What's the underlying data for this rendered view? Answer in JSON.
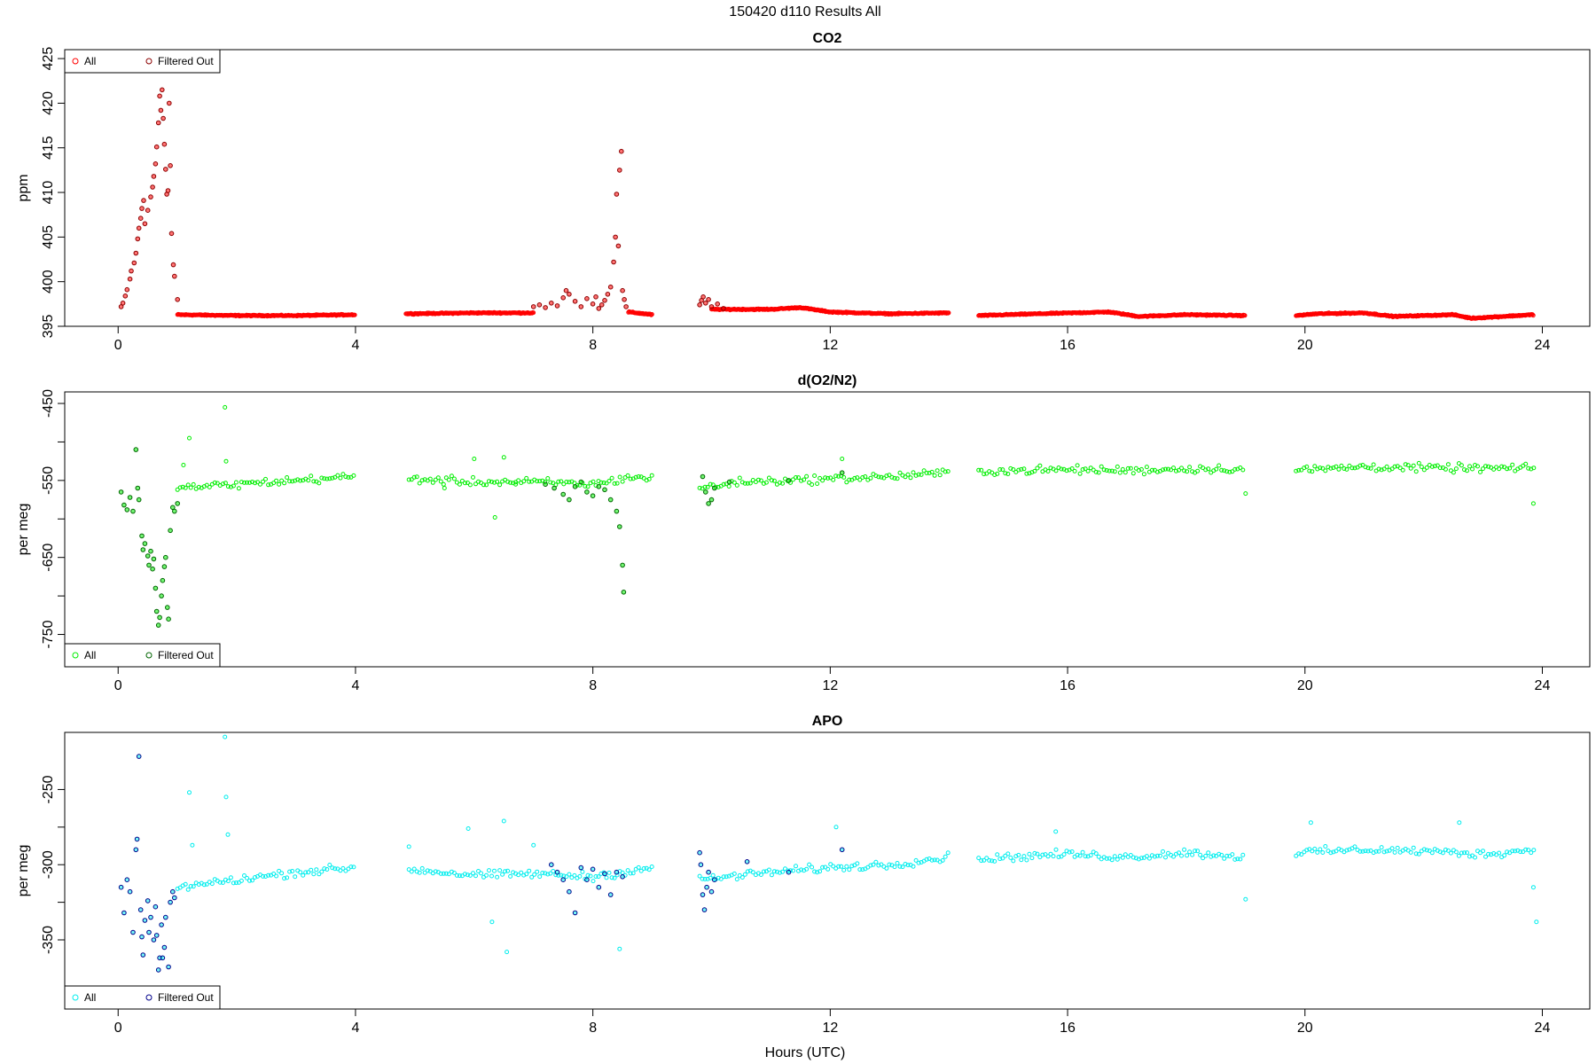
{
  "figure_title": "150420   d110   Results All",
  "xlabel": "Hours (UTC)",
  "chart_data": [
    {
      "type": "scatter",
      "title": "CO2",
      "ylabel": "ppm",
      "xlim": [
        -0.9,
        24.8
      ],
      "ylim": [
        395,
        426
      ],
      "xticks": [
        0,
        4,
        8,
        12,
        16,
        20,
        24
      ],
      "yticks": [
        395,
        400,
        405,
        410,
        415,
        420,
        425
      ],
      "legend": {
        "position": "top-left",
        "entries": [
          "All",
          "Filtered Out"
        ]
      },
      "colors": {
        "all": "#ff0000",
        "filtered": "#8b0000"
      },
      "baseline_segments": [
        {
          "start": 1.0,
          "end": 4.0,
          "points": [
            [
              1.0,
              396.3
            ],
            [
              2.0,
              396.2
            ],
            [
              3.0,
              396.2
            ],
            [
              4.0,
              396.3
            ]
          ]
        },
        {
          "start": 4.85,
          "end": 7.0,
          "points": [
            [
              4.85,
              396.4
            ],
            [
              6.0,
              396.5
            ],
            [
              7.0,
              396.5
            ]
          ]
        },
        {
          "start": 8.6,
          "end": 9.0,
          "points": [
            [
              8.6,
              396.6
            ],
            [
              9.0,
              396.3
            ]
          ]
        },
        {
          "start": 10.0,
          "end": 14.0,
          "points": [
            [
              10.0,
              396.9
            ],
            [
              11.0,
              396.9
            ],
            [
              11.5,
              397.1
            ],
            [
              12.0,
              396.6
            ],
            [
              13.0,
              396.4
            ],
            [
              14.0,
              396.5
            ]
          ]
        },
        {
          "start": 14.5,
          "end": 19.0,
          "points": [
            [
              14.5,
              396.2
            ],
            [
              15.5,
              396.4
            ],
            [
              16.7,
              396.6
            ],
            [
              17.2,
              396.1
            ],
            [
              18.0,
              396.3
            ],
            [
              19.0,
              396.2
            ]
          ]
        },
        {
          "start": 19.85,
          "end": 23.85,
          "points": [
            [
              19.85,
              396.2
            ],
            [
              20.2,
              396.4
            ],
            [
              21.0,
              396.5
            ],
            [
              21.5,
              396.1
            ],
            [
              22.5,
              396.3
            ],
            [
              22.8,
              395.9
            ],
            [
              23.85,
              396.3
            ]
          ]
        }
      ],
      "filtered_points": [
        [
          0.05,
          397.2
        ],
        [
          0.08,
          397.6
        ],
        [
          0.12,
          398.4
        ],
        [
          0.15,
          399.1
        ],
        [
          0.2,
          400.3
        ],
        [
          0.22,
          401.2
        ],
        [
          0.27,
          402.1
        ],
        [
          0.3,
          403.2
        ],
        [
          0.33,
          404.8
        ],
        [
          0.35,
          406.0
        ],
        [
          0.38,
          407.1
        ],
        [
          0.4,
          408.2
        ],
        [
          0.43,
          409.1
        ],
        [
          0.45,
          406.5
        ],
        [
          0.5,
          408.0
        ],
        [
          0.55,
          409.5
        ],
        [
          0.58,
          410.6
        ],
        [
          0.6,
          411.8
        ],
        [
          0.63,
          413.2
        ],
        [
          0.65,
          415.1
        ],
        [
          0.68,
          417.8
        ],
        [
          0.7,
          420.8
        ],
        [
          0.72,
          419.2
        ],
        [
          0.74,
          421.5
        ],
        [
          0.76,
          418.3
        ],
        [
          0.78,
          415.4
        ],
        [
          0.8,
          412.6
        ],
        [
          0.82,
          409.8
        ],
        [
          0.84,
          410.2
        ],
        [
          0.86,
          420.0
        ],
        [
          0.88,
          413.0
        ],
        [
          0.9,
          405.4
        ],
        [
          0.93,
          401.9
        ],
        [
          0.95,
          400.6
        ],
        [
          1.0,
          398.0
        ],
        [
          7.0,
          397.2
        ],
        [
          7.1,
          397.4
        ],
        [
          7.2,
          397.1
        ],
        [
          7.3,
          397.6
        ],
        [
          7.4,
          397.3
        ],
        [
          7.5,
          398.2
        ],
        [
          7.55,
          399.0
        ],
        [
          7.6,
          398.6
        ],
        [
          7.7,
          397.8
        ],
        [
          7.8,
          397.2
        ],
        [
          7.9,
          398.1
        ],
        [
          8.0,
          397.5
        ],
        [
          8.05,
          398.3
        ],
        [
          8.1,
          397.0
        ],
        [
          8.15,
          397.4
        ],
        [
          8.2,
          397.9
        ],
        [
          8.25,
          398.6
        ],
        [
          8.3,
          399.4
        ],
        [
          8.35,
          402.2
        ],
        [
          8.38,
          405.0
        ],
        [
          8.4,
          409.8
        ],
        [
          8.43,
          404.0
        ],
        [
          8.45,
          412.5
        ],
        [
          8.48,
          414.6
        ],
        [
          8.5,
          399.0
        ],
        [
          8.53,
          398.0
        ],
        [
          8.56,
          397.2
        ],
        [
          9.8,
          397.4
        ],
        [
          9.83,
          397.9
        ],
        [
          9.86,
          398.3
        ],
        [
          9.9,
          397.6
        ],
        [
          9.95,
          398.0
        ],
        [
          10.0,
          397.2
        ],
        [
          10.1,
          397.5
        ],
        [
          10.2,
          397.0
        ]
      ]
    },
    {
      "type": "scatter",
      "title": "d(O2/N2)",
      "ylabel": "per meg",
      "xlim": [
        -0.9,
        24.8
      ],
      "ylim": [
        -792,
        -435
      ],
      "xticks": [
        0,
        4,
        8,
        12,
        16,
        20,
        24
      ],
      "yticks": [
        -450,
        -550,
        -650,
        -750
      ],
      "minor_yticks": [
        -500,
        -600,
        -700
      ],
      "legend": {
        "position": "bottom-left",
        "entries": [
          "All",
          "Filtered Out"
        ]
      },
      "colors": {
        "all": "#00ee00",
        "filtered": "#006400"
      },
      "baseline_segments": [
        {
          "start": 1.0,
          "end": 4.0,
          "points": [
            [
              1.0,
              -560
            ],
            [
              2.0,
              -555
            ],
            [
              3.0,
              -550
            ],
            [
              4.0,
              -545
            ]
          ]
        },
        {
          "start": 4.9,
          "end": 9.0,
          "points": [
            [
              4.9,
              -548
            ],
            [
              6.0,
              -552
            ],
            [
              7.0,
              -552
            ],
            [
              8.0,
              -555
            ],
            [
              8.7,
              -545
            ],
            [
              9.0,
              -548
            ]
          ]
        },
        {
          "start": 9.8,
          "end": 14.0,
          "points": [
            [
              9.8,
              -560
            ],
            [
              10.5,
              -552
            ],
            [
              12.0,
              -548
            ],
            [
              13.0,
              -545
            ],
            [
              14.0,
              -540
            ]
          ]
        },
        {
          "start": 14.5,
          "end": 19.0,
          "points": [
            [
              14.5,
              -538
            ],
            [
              16.0,
              -536
            ],
            [
              17.0,
              -537
            ],
            [
              18.0,
              -535
            ],
            [
              19.0,
              -535
            ]
          ]
        },
        {
          "start": 19.85,
          "end": 23.9,
          "points": [
            [
              19.85,
              -537
            ],
            [
              21.0,
              -532
            ],
            [
              22.0,
              -534
            ],
            [
              23.0,
              -534
            ],
            [
              23.9,
              -535
            ]
          ]
        }
      ],
      "outliers": [
        [
          1.2,
          -495
        ],
        [
          1.8,
          -455
        ],
        [
          1.82,
          -525
        ],
        [
          1.1,
          -530
        ],
        [
          6.5,
          -520
        ],
        [
          6.0,
          -522
        ],
        [
          6.7,
          -555
        ],
        [
          6.35,
          -598
        ],
        [
          5.5,
          -560
        ],
        [
          23.85,
          -580
        ],
        [
          19.0,
          -567
        ],
        [
          12.2,
          -522
        ]
      ],
      "filtered_points": [
        [
          0.05,
          -565
        ],
        [
          0.1,
          -582
        ],
        [
          0.15,
          -588
        ],
        [
          0.2,
          -572
        ],
        [
          0.25,
          -590
        ],
        [
          0.3,
          -510
        ],
        [
          0.33,
          -560
        ],
        [
          0.35,
          -575
        ],
        [
          0.4,
          -622
        ],
        [
          0.42,
          -640
        ],
        [
          0.45,
          -632
        ],
        [
          0.5,
          -648
        ],
        [
          0.52,
          -660
        ],
        [
          0.55,
          -642
        ],
        [
          0.58,
          -665
        ],
        [
          0.6,
          -652
        ],
        [
          0.63,
          -690
        ],
        [
          0.65,
          -720
        ],
        [
          0.68,
          -738
        ],
        [
          0.7,
          -728
        ],
        [
          0.73,
          -700
        ],
        [
          0.75,
          -680
        ],
        [
          0.78,
          -662
        ],
        [
          0.8,
          -650
        ],
        [
          0.83,
          -715
        ],
        [
          0.85,
          -730
        ],
        [
          0.88,
          -615
        ],
        [
          0.92,
          -585
        ],
        [
          0.95,
          -590
        ],
        [
          1.0,
          -580
        ],
        [
          7.2,
          -555
        ],
        [
          7.35,
          -560
        ],
        [
          7.5,
          -568
        ],
        [
          7.6,
          -575
        ],
        [
          7.7,
          -558
        ],
        [
          7.8,
          -552
        ],
        [
          7.9,
          -565
        ],
        [
          8.0,
          -570
        ],
        [
          8.1,
          -558
        ],
        [
          8.2,
          -562
        ],
        [
          8.3,
          -575
        ],
        [
          8.4,
          -590
        ],
        [
          8.45,
          -610
        ],
        [
          8.5,
          -660
        ],
        [
          8.52,
          -695
        ],
        [
          9.85,
          -545
        ],
        [
          9.9,
          -565
        ],
        [
          9.95,
          -580
        ],
        [
          10.0,
          -575
        ],
        [
          10.05,
          -560
        ],
        [
          10.3,
          -552
        ],
        [
          11.3,
          -550
        ],
        [
          12.2,
          -540
        ]
      ]
    },
    {
      "type": "scatter",
      "title": "APO",
      "ylabel": "per meg",
      "xlim": [
        -0.9,
        24.8
      ],
      "ylim": [
        -396,
        -212
      ],
      "xticks": [
        0,
        4,
        8,
        12,
        16,
        20,
        24
      ],
      "yticks": [
        -250,
        -300,
        -350
      ],
      "minor_yticks": [
        -275,
        -325
      ],
      "legend": {
        "position": "bottom-left",
        "entries": [
          "All",
          "Filtered Out"
        ]
      },
      "colors": {
        "all": "#00eeee",
        "filtered": "#00008b"
      },
      "baseline_segments": [
        {
          "start": 1.0,
          "end": 4.0,
          "points": [
            [
              1.0,
              -315
            ],
            [
              2.0,
              -310
            ],
            [
              3.0,
              -305
            ],
            [
              4.0,
              -302
            ]
          ]
        },
        {
          "start": 4.9,
          "end": 9.0,
          "points": [
            [
              4.9,
              -303
            ],
            [
              6.0,
              -307
            ],
            [
              7.0,
              -306
            ],
            [
              8.0,
              -308
            ],
            [
              9.0,
              -302
            ]
          ]
        },
        {
          "start": 9.8,
          "end": 14.0,
          "points": [
            [
              9.8,
              -310
            ],
            [
              11.0,
              -305
            ],
            [
              12.0,
              -302
            ],
            [
              13.0,
              -300
            ],
            [
              14.0,
              -295
            ]
          ]
        },
        {
          "start": 14.5,
          "end": 19.0,
          "points": [
            [
              14.5,
              -296
            ],
            [
              16.0,
              -293
            ],
            [
              17.0,
              -295
            ],
            [
              18.0,
              -292
            ],
            [
              19.0,
              -295
            ]
          ]
        },
        {
          "start": 19.85,
          "end": 23.9,
          "points": [
            [
              19.85,
              -292
            ],
            [
              21.0,
              -290
            ],
            [
              22.0,
              -291
            ],
            [
              23.0,
              -293
            ],
            [
              23.9,
              -290
            ]
          ]
        }
      ],
      "outliers": [
        [
          1.2,
          -252
        ],
        [
          1.8,
          -215
        ],
        [
          1.82,
          -255
        ],
        [
          1.85,
          -280
        ],
        [
          1.25,
          -287
        ],
        [
          5.9,
          -276
        ],
        [
          6.5,
          -271
        ],
        [
          6.3,
          -338
        ],
        [
          6.55,
          -358
        ],
        [
          8.45,
          -356
        ],
        [
          12.1,
          -275
        ],
        [
          15.8,
          -278
        ],
        [
          19.0,
          -323
        ],
        [
          23.9,
          -338
        ],
        [
          23.85,
          -315
        ],
        [
          20.1,
          -272
        ],
        [
          22.6,
          -272
        ],
        [
          7.0,
          -287
        ],
        [
          4.9,
          -288
        ]
      ],
      "filtered_points": [
        [
          0.05,
          -315
        ],
        [
          0.1,
          -332
        ],
        [
          0.15,
          -310
        ],
        [
          0.2,
          -318
        ],
        [
          0.25,
          -345
        ],
        [
          0.3,
          -290
        ],
        [
          0.32,
          -283
        ],
        [
          0.35,
          -228
        ],
        [
          0.38,
          -330
        ],
        [
          0.4,
          -348
        ],
        [
          0.42,
          -360
        ],
        [
          0.45,
          -337
        ],
        [
          0.5,
          -324
        ],
        [
          0.52,
          -345
        ],
        [
          0.55,
          -335
        ],
        [
          0.6,
          -350
        ],
        [
          0.63,
          -328
        ],
        [
          0.65,
          -347
        ],
        [
          0.68,
          -370
        ],
        [
          0.7,
          -362
        ],
        [
          0.73,
          -340
        ],
        [
          0.75,
          -362
        ],
        [
          0.78,
          -355
        ],
        [
          0.8,
          -335
        ],
        [
          0.85,
          -368
        ],
        [
          0.88,
          -325
        ],
        [
          0.92,
          -318
        ],
        [
          0.95,
          -322
        ],
        [
          7.3,
          -300
        ],
        [
          7.4,
          -305
        ],
        [
          7.5,
          -310
        ],
        [
          7.6,
          -318
        ],
        [
          7.7,
          -332
        ],
        [
          7.8,
          -302
        ],
        [
          7.9,
          -310
        ],
        [
          8.0,
          -303
        ],
        [
          8.1,
          -315
        ],
        [
          8.2,
          -306
        ],
        [
          8.3,
          -320
        ],
        [
          8.4,
          -305
        ],
        [
          8.5,
          -308
        ],
        [
          9.8,
          -292
        ],
        [
          9.82,
          -300
        ],
        [
          9.85,
          -320
        ],
        [
          9.88,
          -330
        ],
        [
          9.92,
          -315
        ],
        [
          9.95,
          -305
        ],
        [
          10.0,
          -318
        ],
        [
          10.05,
          -310
        ],
        [
          10.6,
          -298
        ],
        [
          11.3,
          -305
        ],
        [
          12.2,
          -290
        ]
      ]
    }
  ]
}
